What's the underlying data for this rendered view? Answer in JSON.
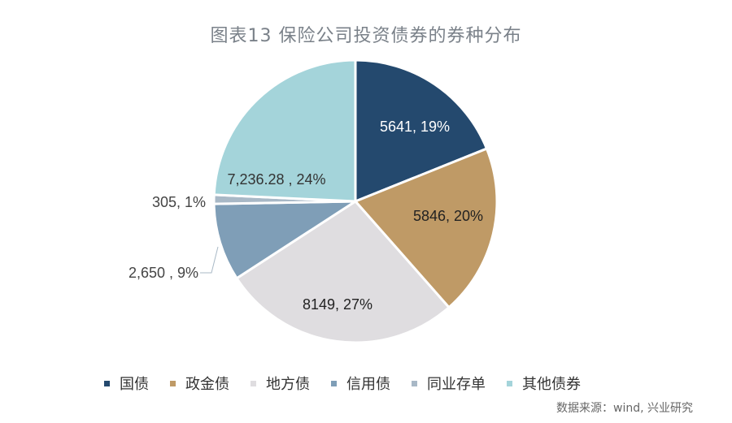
{
  "title": "图表13   保险公司投资债券的券种分布",
  "source": "数据来源：wind, 兴业研究",
  "chart_data": {
    "type": "pie",
    "title": "图表13   保险公司投资债券的券种分布",
    "categories": [
      "国债",
      "政金债",
      "地方债",
      "信用债",
      "同业存单",
      "其他债券"
    ],
    "values": [
      5641,
      5846,
      8149,
      2650,
      305,
      7236.28
    ],
    "percents": [
      19,
      20,
      27,
      9,
      1,
      24
    ],
    "data_labels": [
      "5641, 19%",
      "5846, 20%",
      "8149, 27%",
      "2,650 , 9%",
      "305, 1%",
      "7,236.28 , 24%"
    ],
    "colors": [
      "#24496e",
      "#bf9a66",
      "#dfdde0",
      "#7f9eb7",
      "#a8b8c6",
      "#a4d4da"
    ],
    "legend_position": "bottom"
  }
}
